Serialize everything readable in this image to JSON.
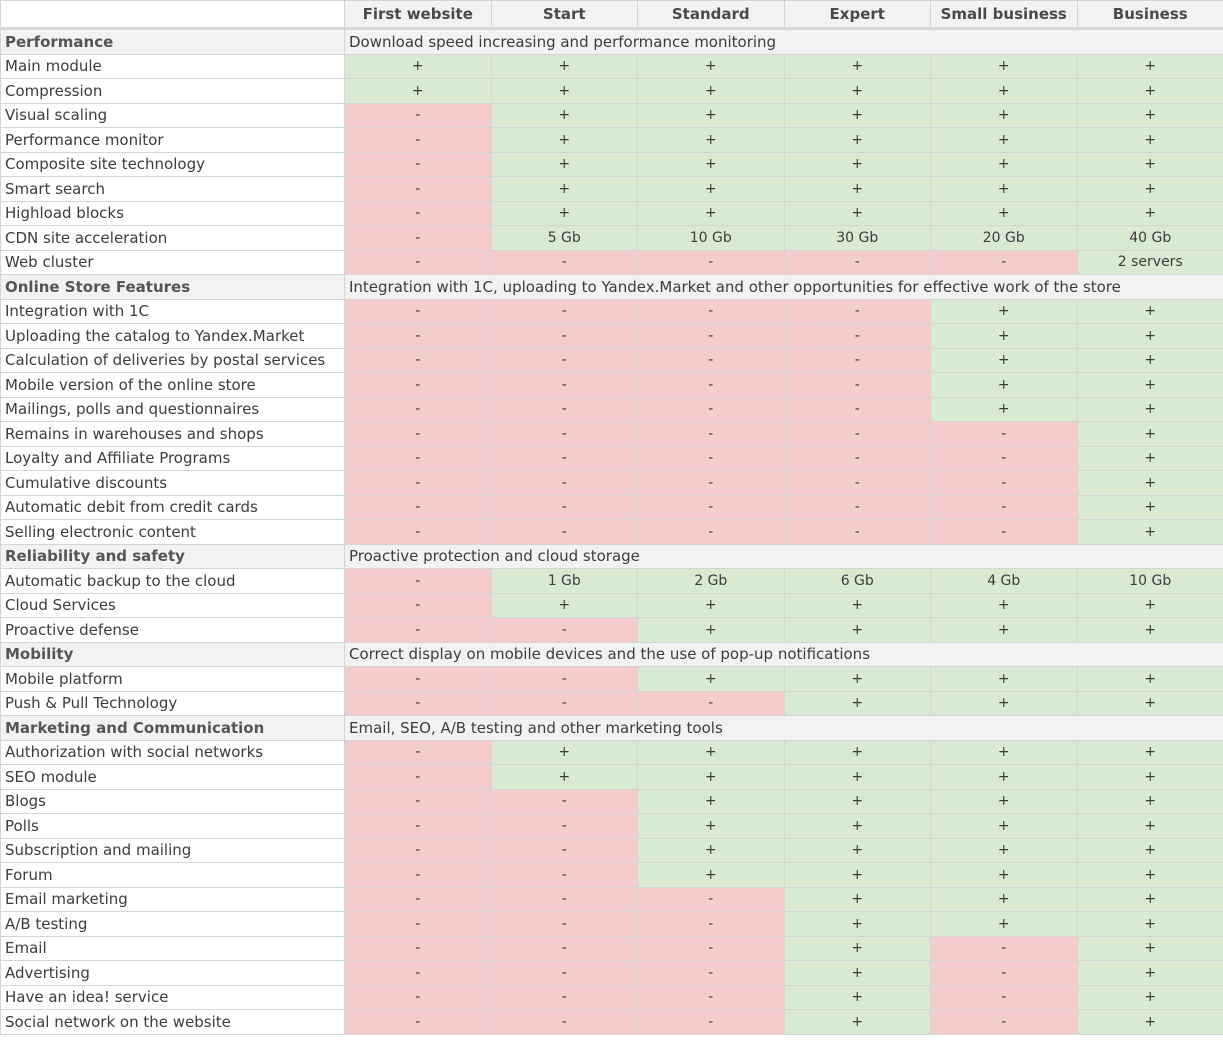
{
  "table": {
    "headers": [
      "",
      "First website",
      "Start",
      "Standard",
      "Expert",
      "Small business",
      "Business"
    ],
    "colors": {
      "yes": "#d9ead3",
      "no": "#f4cccc",
      "section": "#f2f2f2"
    },
    "sections": [
      {
        "name": "Performance",
        "description": "Download speed increasing and performance monitoring",
        "rows": [
          {
            "feature": "Main module",
            "values": [
              "+",
              "+",
              "+",
              "+",
              "+",
              "+"
            ],
            "status": [
              "y",
              "y",
              "y",
              "y",
              "y",
              "y"
            ]
          },
          {
            "feature": "Compression",
            "values": [
              "+",
              "+",
              "+",
              "+",
              "+",
              "+"
            ],
            "status": [
              "y",
              "y",
              "y",
              "y",
              "y",
              "y"
            ]
          },
          {
            "feature": "Visual scaling",
            "values": [
              "-",
              "+",
              "+",
              "+",
              "+",
              "+"
            ],
            "status": [
              "n",
              "y",
              "y",
              "y",
              "y",
              "y"
            ]
          },
          {
            "feature": "Performance monitor",
            "values": [
              "-",
              "+",
              "+",
              "+",
              "+",
              "+"
            ],
            "status": [
              "n",
              "y",
              "y",
              "y",
              "y",
              "y"
            ]
          },
          {
            "feature": "Composite site technology",
            "values": [
              "-",
              "+",
              "+",
              "+",
              "+",
              "+"
            ],
            "status": [
              "n",
              "y",
              "y",
              "y",
              "y",
              "y"
            ]
          },
          {
            "feature": "Smart search",
            "values": [
              "-",
              "+",
              "+",
              "+",
              "+",
              "+"
            ],
            "status": [
              "n",
              "y",
              "y",
              "y",
              "y",
              "y"
            ]
          },
          {
            "feature": "Highload blocks",
            "values": [
              "-",
              "+",
              "+",
              "+",
              "+",
              "+"
            ],
            "status": [
              "n",
              "y",
              "y",
              "y",
              "y",
              "y"
            ]
          },
          {
            "feature": "CDN site acceleration",
            "values": [
              "-",
              "5 Gb",
              "10 Gb",
              "30 Gb",
              "20 Gb",
              "40 Gb"
            ],
            "status": [
              "n",
              "y",
              "y",
              "y",
              "y",
              "y"
            ]
          },
          {
            "feature": "Web cluster",
            "values": [
              "-",
              "-",
              "-",
              "-",
              "-",
              "2 servers"
            ],
            "status": [
              "n",
              "n",
              "n",
              "n",
              "n",
              "y"
            ]
          }
        ]
      },
      {
        "name": "Online Store Features",
        "description": "Integration with 1C, uploading to Yandex.Market and other opportunities for effective work of the store",
        "rows": [
          {
            "feature": "Integration with 1C",
            "values": [
              "-",
              "-",
              "-",
              "-",
              "+",
              "+"
            ],
            "status": [
              "n",
              "n",
              "n",
              "n",
              "y",
              "y"
            ]
          },
          {
            "feature": "Uploading the catalog to Yandex.Market",
            "values": [
              "-",
              "-",
              "-",
              "-",
              "+",
              "+"
            ],
            "status": [
              "n",
              "n",
              "n",
              "n",
              "y",
              "y"
            ]
          },
          {
            "feature": "Calculation of deliveries by postal services",
            "values": [
              "-",
              "-",
              "-",
              "-",
              "+",
              "+"
            ],
            "status": [
              "n",
              "n",
              "n",
              "n",
              "y",
              "y"
            ]
          },
          {
            "feature": "Mobile version of the online store",
            "values": [
              "-",
              "-",
              "-",
              "-",
              "+",
              "+"
            ],
            "status": [
              "n",
              "n",
              "n",
              "n",
              "y",
              "y"
            ]
          },
          {
            "feature": "Mailings, polls and questionnaires",
            "values": [
              "-",
              "-",
              "-",
              "-",
              "+",
              "+"
            ],
            "status": [
              "n",
              "n",
              "n",
              "n",
              "y",
              "y"
            ]
          },
          {
            "feature": "Remains in warehouses and shops",
            "values": [
              "-",
              "-",
              "-",
              "-",
              "-",
              "+"
            ],
            "status": [
              "n",
              "n",
              "n",
              "n",
              "n",
              "y"
            ]
          },
          {
            "feature": "Loyalty and Affiliate Programs",
            "values": [
              "-",
              "-",
              "-",
              "-",
              "-",
              "+"
            ],
            "status": [
              "n",
              "n",
              "n",
              "n",
              "n",
              "y"
            ]
          },
          {
            "feature": "Cumulative discounts",
            "values": [
              "-",
              "-",
              "-",
              "-",
              "-",
              "+"
            ],
            "status": [
              "n",
              "n",
              "n",
              "n",
              "n",
              "y"
            ]
          },
          {
            "feature": "Automatic debit from credit cards",
            "values": [
              "-",
              "-",
              "-",
              "-",
              "-",
              "+"
            ],
            "status": [
              "n",
              "n",
              "n",
              "n",
              "n",
              "y"
            ]
          },
          {
            "feature": "Selling electronic content",
            "values": [
              "-",
              "-",
              "-",
              "-",
              "-",
              "+"
            ],
            "status": [
              "n",
              "n",
              "n",
              "n",
              "n",
              "y"
            ]
          }
        ]
      },
      {
        "name": "Reliability and safety",
        "description": "Proactive protection and cloud storage",
        "rows": [
          {
            "feature": "Automatic backup to the cloud",
            "values": [
              "-",
              "1 Gb",
              "2 Gb",
              "6 Gb",
              "4 Gb",
              "10 Gb"
            ],
            "status": [
              "n",
              "y",
              "y",
              "y",
              "y",
              "y"
            ]
          },
          {
            "feature": "Cloud Services",
            "values": [
              "-",
              "+",
              "+",
              "+",
              "+",
              "+"
            ],
            "status": [
              "n",
              "y",
              "y",
              "y",
              "y",
              "y"
            ]
          },
          {
            "feature": "Proactive defense",
            "values": [
              "-",
              "-",
              "+",
              "+",
              "+",
              "+"
            ],
            "status": [
              "n",
              "n",
              "y",
              "y",
              "y",
              "y"
            ]
          }
        ]
      },
      {
        "name": "Mobility",
        "description": "Correct display on mobile devices and the use of pop-up notifications",
        "rows": [
          {
            "feature": "Mobile platform",
            "values": [
              "-",
              "-",
              "+",
              "+",
              "+",
              "+"
            ],
            "status": [
              "n",
              "n",
              "y",
              "y",
              "y",
              "y"
            ]
          },
          {
            "feature": "Push & Pull Technology",
            "values": [
              "-",
              "-",
              "-",
              "+",
              "+",
              "+"
            ],
            "status": [
              "n",
              "n",
              "n",
              "y",
              "y",
              "y"
            ]
          }
        ]
      },
      {
        "name": "Marketing and Communication",
        "description": "Email, SEO, A/B testing and other marketing tools",
        "rows": [
          {
            "feature": "Authorization with social networks",
            "values": [
              "-",
              "+",
              "+",
              "+",
              "+",
              "+"
            ],
            "status": [
              "n",
              "y",
              "y",
              "y",
              "y",
              "y"
            ]
          },
          {
            "feature": "SEO module",
            "values": [
              "-",
              "+",
              "+",
              "+",
              "+",
              "+"
            ],
            "status": [
              "n",
              "y",
              "y",
              "y",
              "y",
              "y"
            ]
          },
          {
            "feature": "Blogs",
            "values": [
              "-",
              "-",
              "+",
              "+",
              "+",
              "+"
            ],
            "status": [
              "n",
              "n",
              "y",
              "y",
              "y",
              "y"
            ]
          },
          {
            "feature": "Polls",
            "values": [
              "-",
              "-",
              "+",
              "+",
              "+",
              "+"
            ],
            "status": [
              "n",
              "n",
              "y",
              "y",
              "y",
              "y"
            ]
          },
          {
            "feature": "Subscription and mailing",
            "values": [
              "-",
              "-",
              "+",
              "+",
              "+",
              "+"
            ],
            "status": [
              "n",
              "n",
              "y",
              "y",
              "y",
              "y"
            ]
          },
          {
            "feature": "Forum",
            "values": [
              "-",
              "-",
              "+",
              "+",
              "+",
              "+"
            ],
            "status": [
              "n",
              "n",
              "y",
              "y",
              "y",
              "y"
            ]
          },
          {
            "feature": "Email marketing",
            "values": [
              "-",
              "-",
              "-",
              "+",
              "+",
              "+"
            ],
            "status": [
              "n",
              "n",
              "n",
              "y",
              "y",
              "y"
            ]
          },
          {
            "feature": "A/B testing",
            "values": [
              "-",
              "-",
              "-",
              "+",
              "+",
              "+"
            ],
            "status": [
              "n",
              "n",
              "n",
              "y",
              "y",
              "y"
            ]
          },
          {
            "feature": "Email",
            "values": [
              "-",
              "-",
              "-",
              "+",
              "-",
              "+"
            ],
            "status": [
              "n",
              "n",
              "n",
              "y",
              "n",
              "y"
            ]
          },
          {
            "feature": "Advertising",
            "values": [
              "-",
              "-",
              "-",
              "+",
              "-",
              "+"
            ],
            "status": [
              "n",
              "n",
              "n",
              "y",
              "n",
              "y"
            ]
          },
          {
            "feature": "Have an idea! service",
            "values": [
              "-",
              "-",
              "-",
              "+",
              "-",
              "+"
            ],
            "status": [
              "n",
              "n",
              "n",
              "y",
              "n",
              "y"
            ]
          },
          {
            "feature": "Social network on the website",
            "values": [
              "-",
              "-",
              "-",
              "+",
              "-",
              "+"
            ],
            "status": [
              "n",
              "n",
              "n",
              "y",
              "n",
              "y"
            ]
          }
        ]
      }
    ]
  }
}
